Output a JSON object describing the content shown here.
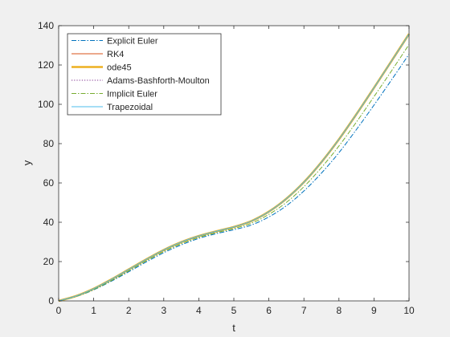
{
  "chart_data": {
    "type": "line",
    "title": "",
    "xlabel": "t",
    "ylabel": "y",
    "xlim": [
      0,
      10
    ],
    "ylim": [
      0,
      140
    ],
    "xticks": [
      0,
      1,
      2,
      3,
      4,
      5,
      6,
      7,
      8,
      9,
      10
    ],
    "yticks": [
      0,
      20,
      40,
      60,
      80,
      100,
      120,
      140
    ],
    "grid": false,
    "legend_position": "top-left",
    "x": [
      0,
      0.5,
      1,
      1.5,
      2,
      2.5,
      3,
      3.5,
      4,
      4.5,
      5,
      5.5,
      6,
      6.5,
      7,
      7.5,
      8,
      8.5,
      9,
      9.5,
      10
    ],
    "series": [
      {
        "name": "Explicit Euler",
        "color": "#0072bd",
        "style": "dashdot",
        "values": [
          0,
          2.2,
          5.6,
          10.0,
          14.8,
          19.8,
          24.5,
          28.5,
          31.8,
          34.2,
          36.2,
          38.6,
          42.7,
          48.4,
          55.9,
          65.0,
          75.4,
          87.2,
          99.6,
          112.4,
          125.5
        ]
      },
      {
        "name": "RK4",
        "color": "#d95319",
        "style": "solid",
        "values": [
          0,
          2.5,
          6.2,
          10.9,
          16.0,
          21.1,
          25.9,
          29.9,
          33.0,
          35.4,
          37.6,
          40.6,
          45.4,
          52.0,
          60.4,
          70.6,
          82.2,
          95.0,
          108.4,
          122.0,
          135.8
        ]
      },
      {
        "name": "ode45",
        "color": "#edb120",
        "style": "thick",
        "values": [
          0,
          2.5,
          6.2,
          10.9,
          16.0,
          21.1,
          25.9,
          29.9,
          33.0,
          35.4,
          37.6,
          40.6,
          45.4,
          52.0,
          60.4,
          70.6,
          82.2,
          95.0,
          108.4,
          122.0,
          135.8
        ]
      },
      {
        "name": "Adams-Bashforth-Moulton",
        "color": "#7e2f8e",
        "style": "dotted",
        "values": [
          0,
          2.5,
          6.2,
          10.9,
          16.0,
          21.1,
          25.9,
          29.9,
          33.0,
          35.4,
          37.6,
          40.6,
          45.4,
          52.0,
          60.4,
          70.6,
          82.2,
          95.0,
          108.4,
          122.0,
          135.7
        ]
      },
      {
        "name": "Implicit Euler",
        "color": "#77ac30",
        "style": "dashdot",
        "values": [
          0,
          2.3,
          5.8,
          10.3,
          15.3,
          20.4,
          25.1,
          29.1,
          32.3,
          34.7,
          36.8,
          39.5,
          44.0,
          50.1,
          58.1,
          67.8,
          78.8,
          91.0,
          103.9,
          117.0,
          130.4
        ]
      },
      {
        "name": "Trapezoidal",
        "color": "#4dbeee",
        "style": "solid",
        "values": [
          0,
          2.5,
          6.2,
          10.9,
          16.0,
          21.1,
          25.9,
          29.9,
          33.0,
          35.4,
          37.6,
          40.6,
          45.4,
          52.0,
          60.4,
          70.6,
          82.2,
          95.0,
          108.4,
          122.0,
          135.7
        ]
      }
    ]
  }
}
